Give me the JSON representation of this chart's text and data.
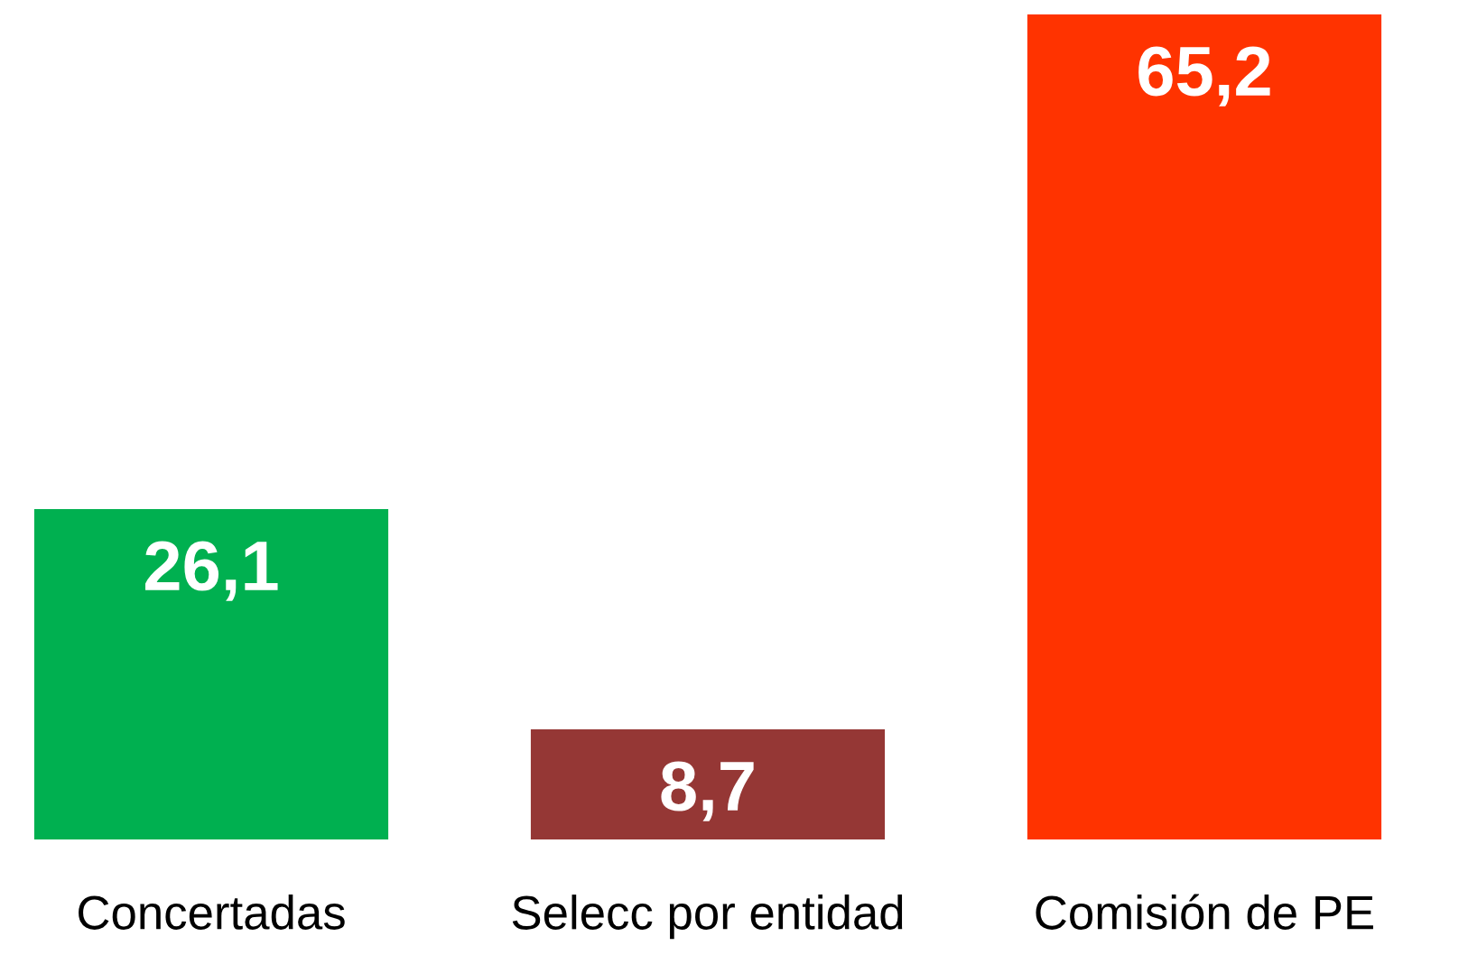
{
  "chart_data": {
    "type": "bar",
    "categories": [
      "Concertadas",
      "Selecc por entidad",
      "Comisión de PE"
    ],
    "values": [
      26.1,
      8.7,
      65.2
    ],
    "colors": [
      "#00b050",
      "#953735",
      "#ff3300"
    ],
    "value_labels": [
      "26,1",
      "8,7",
      "65,2"
    ],
    "grid": false,
    "legend": false
  }
}
